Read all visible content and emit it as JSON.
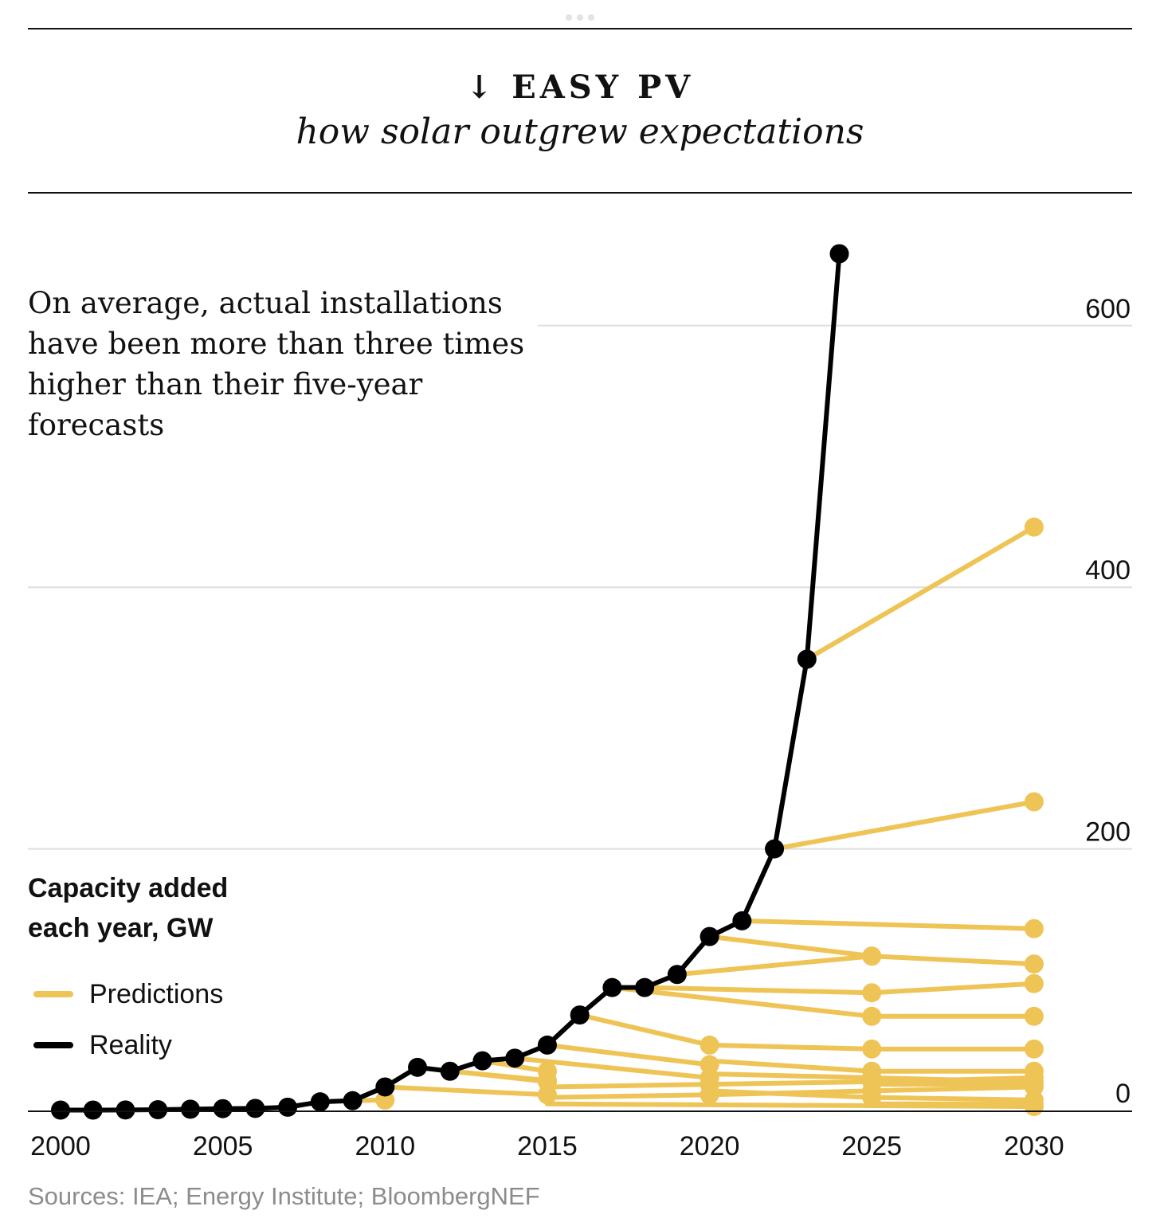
{
  "header": {
    "kicker": "↓ EASY PV",
    "title": "how solar outgrew expectations"
  },
  "annotation": "On average, actual installations have been more than three times higher than their five-year forecasts",
  "unit_label": "Capacity added each year, GW",
  "legend": [
    {
      "label": "Predictions",
      "color": "#efc457"
    },
    {
      "label": "Reality",
      "color": "#000000"
    }
  ],
  "source": "Sources: IEA; Energy Institute; BloombergNEF",
  "colors": {
    "prediction": "#efc457",
    "reality": "#000000",
    "grid": "#dedede",
    "baseline": "#111111"
  },
  "chart_data": {
    "type": "line",
    "xlim": [
      1999,
      2031
    ],
    "ylim": [
      0,
      650
    ],
    "yticks": [
      0,
      200,
      400,
      600
    ],
    "xticks": [
      2000,
      2005,
      2010,
      2015,
      2020,
      2025,
      2030
    ],
    "grid": true,
    "y_axis_position": "right",
    "series": [
      {
        "name": "Reality",
        "x": [
          2000,
          2001,
          2002,
          2003,
          2004,
          2005,
          2006,
          2007,
          2008,
          2009,
          2010,
          2011,
          2012,
          2013,
          2014,
          2015,
          2016,
          2017,
          2018,
          2019,
          2020,
          2021,
          2022,
          2023,
          2024
        ],
        "y": [
          0.3,
          0.3,
          0.4,
          0.6,
          1,
          1.4,
          1.6,
          2.5,
          6.6,
          7.5,
          18,
          33,
          30,
          38,
          40,
          50,
          73,
          94,
          94,
          104,
          133,
          145,
          200,
          345,
          655
        ]
      }
    ],
    "predictions": [
      {
        "x": [
          2009,
          2010
        ],
        "y": [
          7.5,
          8
        ]
      },
      {
        "x": [
          2010,
          2015
        ],
        "y": [
          18,
          12
        ]
      },
      {
        "x": [
          2011,
          2015
        ],
        "y": [
          33,
          22
        ]
      },
      {
        "x": [
          2012,
          2015
        ],
        "y": [
          30,
          23
        ]
      },
      {
        "x": [
          2013,
          2015
        ],
        "y": [
          38,
          30
        ]
      },
      {
        "x": [
          2014,
          2020
        ],
        "y": [
          40,
          25
        ]
      },
      {
        "x": [
          2015,
          2020
        ],
        "y": [
          50,
          35
        ]
      },
      {
        "x": [
          2015,
          2020,
          2025,
          2030
        ],
        "y": [
          18,
          20,
          22,
          25
        ]
      },
      {
        "x": [
          2015,
          2020,
          2025,
          2030
        ],
        "y": [
          10,
          12,
          15,
          18
        ]
      },
      {
        "x": [
          2016,
          2020,
          2025,
          2030
        ],
        "y": [
          73,
          50,
          47,
          47
        ]
      },
      {
        "x": [
          2017,
          2025,
          2030
        ],
        "y": [
          94,
          72,
          72
        ]
      },
      {
        "x": [
          2018,
          2025,
          2030
        ],
        "y": [
          94,
          90,
          97
        ]
      },
      {
        "x": [
          2019,
          2025,
          2030
        ],
        "y": [
          104,
          118,
          112
        ]
      },
      {
        "x": [
          2020,
          2025
        ],
        "y": [
          133,
          118
        ]
      },
      {
        "x": [
          2021,
          2030
        ],
        "y": [
          145,
          139
        ]
      },
      {
        "x": [
          2022,
          2030
        ],
        "y": [
          200,
          236
        ]
      },
      {
        "x": [
          2023,
          2030
        ],
        "y": [
          345,
          446
        ]
      },
      {
        "x": [
          2020,
          2025,
          2030
        ],
        "y": [
          38,
          30,
          30
        ]
      },
      {
        "x": [
          2020,
          2025,
          2030
        ],
        "y": [
          28,
          25,
          22
        ]
      },
      {
        "x": [
          2020,
          2025,
          2030
        ],
        "y": [
          15,
          10,
          8
        ]
      },
      {
        "x": [
          2025,
          2030
        ],
        "y": [
          5,
          5
        ]
      },
      {
        "x": [
          2025,
          2030
        ],
        "y": [
          20,
          20
        ]
      },
      {
        "x": [
          2015,
          2030
        ],
        "y": [
          5,
          3
        ]
      }
    ],
    "annotations": [
      "On average, actual installations have been more than three times higher than their five-year forecasts"
    ]
  }
}
